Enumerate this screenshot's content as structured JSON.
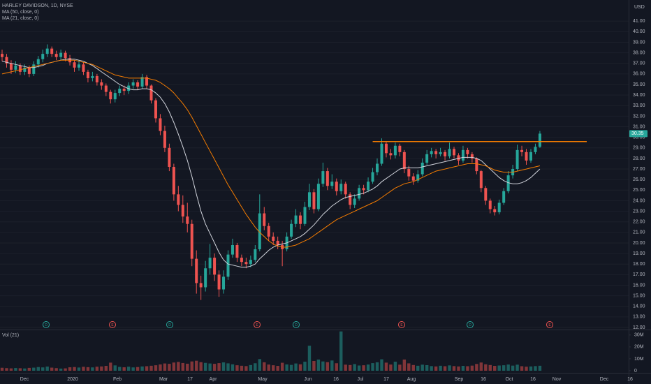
{
  "chart_data": {
    "type": "candlestick",
    "title": "HARLEY DAVIDSON, 1D, NYSE",
    "currency": "USD",
    "indicators": [
      "MA (50, close, 0)",
      "MA (21, close, 0)"
    ],
    "volume_title": "Vol (21)",
    "up_color": "#26a69a",
    "down_color": "#ef5350",
    "x_labels": [
      "Dec",
      "2020",
      "Feb",
      "Mar",
      "17",
      "Apr",
      "May",
      "Jun",
      "16",
      "Jul",
      "17",
      "Aug",
      "Sep",
      "16",
      "Oct",
      "16",
      "Nov",
      "Dec",
      "16"
    ],
    "events": [
      "D",
      "E",
      "D",
      "E",
      "D",
      "E",
      "D",
      "E"
    ],
    "ylim": [
      11.8,
      43
    ],
    "yticks": [
      {
        "value": 12,
        "label": "12.00"
      },
      {
        "value": 13,
        "label": "13.00"
      },
      {
        "value": 14,
        "label": "14.00"
      },
      {
        "value": 15,
        "label": "15.00"
      },
      {
        "value": 16,
        "label": "16.00"
      },
      {
        "value": 17,
        "label": "17.00"
      },
      {
        "value": 18,
        "label": "18.00"
      },
      {
        "value": 19,
        "label": "19.00"
      },
      {
        "value": 20,
        "label": "20.00"
      },
      {
        "value": 21,
        "label": "21.00"
      },
      {
        "value": 22,
        "label": "22.00"
      },
      {
        "value": 23,
        "label": "23.00"
      },
      {
        "value": 24,
        "label": "24.00"
      },
      {
        "value": 25,
        "label": "25.00"
      },
      {
        "value": 26,
        "label": "26.00"
      },
      {
        "value": 27,
        "label": "27.00"
      },
      {
        "value": 28,
        "label": "28.00"
      },
      {
        "value": 29,
        "label": "29.00"
      },
      {
        "value": 30,
        "label": "30.00"
      },
      {
        "value": 31,
        "label": "31.00"
      },
      {
        "value": 32,
        "label": "32.00"
      },
      {
        "value": 33,
        "label": "33.00"
      },
      {
        "value": 34,
        "label": "34.00"
      },
      {
        "value": 35,
        "label": "35.00"
      },
      {
        "value": 36,
        "label": "36.00"
      },
      {
        "value": 37,
        "label": "37.00"
      },
      {
        "value": 38,
        "label": "38.00"
      },
      {
        "value": 39,
        "label": "39.00"
      },
      {
        "value": 40,
        "label": "40.00"
      },
      {
        "value": 41,
        "label": "41.00"
      }
    ],
    "open": [
      37.9,
      37.6,
      37.0,
      36.4,
      36.8,
      36.2,
      36.6,
      36.0,
      36.9,
      37.4,
      37.9,
      38.4,
      37.9,
      37.6,
      38.0,
      37.5,
      37.1,
      36.6,
      36.9,
      36.2,
      35.6,
      35.8,
      35.2,
      34.9,
      34.3,
      33.6,
      34.2,
      34.6,
      34.4,
      34.9,
      35.2,
      34.8,
      35.7,
      34.9,
      33.5,
      31.8,
      30.6,
      29.0,
      27.2,
      24.6,
      23.6,
      22.5,
      21.8,
      18.5,
      16.2,
      15.8,
      17.6,
      18.6,
      17.0,
      15.6,
      16.8,
      18.9,
      19.8,
      18.6,
      18.2,
      18.0,
      18.4,
      19.4,
      22.8,
      21.6,
      20.6,
      20.2,
      19.8,
      19.4,
      20.6,
      21.8,
      22.6,
      21.8,
      23.4,
      24.8,
      23.2,
      25.6,
      26.8,
      25.4,
      25.8,
      24.9,
      25.6,
      24.6,
      23.6,
      24.2,
      25.2,
      25.0,
      25.8,
      26.7,
      27.5,
      29.4,
      28.5,
      28.3,
      29.2,
      28.6,
      27.0,
      26.3,
      25.9,
      26.5,
      27.6,
      28.4,
      28.7,
      28.4,
      28.6,
      28.2,
      28.9,
      28.3,
      27.8,
      28.8,
      28.4,
      28.0,
      26.8,
      25.2,
      24.0,
      23.2,
      22.9,
      23.8,
      24.9,
      26.4,
      27.0,
      28.8,
      28.6,
      27.8,
      28.6,
      29.1
    ],
    "high": [
      38.3,
      37.9,
      37.3,
      37.2,
      37.0,
      36.9,
      36.8,
      37.2,
      37.7,
      38.3,
      38.8,
      38.6,
      38.2,
      38.3,
      38.2,
      37.8,
      37.3,
      37.3,
      37.1,
      36.4,
      36.2,
      36.0,
      35.5,
      35.1,
      34.5,
      34.5,
      34.9,
      34.9,
      35.2,
      35.5,
      35.4,
      36.0,
      35.9,
      35.0,
      33.7,
      32.2,
      31.1,
      29.4,
      27.5,
      25.4,
      24.5,
      23.8,
      22.2,
      19.3,
      16.9,
      18.3,
      19.9,
      19.0,
      17.4,
      17.4,
      19.3,
      20.4,
      20.0,
      18.9,
      18.6,
      18.8,
      19.8,
      24.6,
      23.4,
      21.9,
      21.0,
      20.6,
      20.2,
      21.0,
      22.2,
      23.2,
      22.9,
      23.9,
      25.6,
      25.1,
      26.1,
      27.6,
      27.1,
      26.5,
      26.1,
      26.0,
      25.8,
      24.8,
      24.6,
      25.5,
      25.5,
      26.2,
      27.1,
      28.0,
      29.9,
      29.6,
      28.9,
      29.5,
      29.4,
      28.8,
      27.3,
      26.6,
      26.9,
      28.0,
      28.8,
      29.0,
      28.9,
      29.0,
      28.8,
      29.5,
      29.1,
      28.5,
      29.2,
      29.0,
      28.6,
      28.1,
      26.9,
      25.4,
      24.2,
      23.5,
      24.1,
      25.2,
      26.8,
      27.4,
      29.3,
      29.2,
      28.9,
      28.9,
      29.4,
      30.6
    ],
    "low": [
      37.2,
      36.6,
      36.0,
      36.1,
      35.9,
      35.9,
      35.7,
      35.8,
      36.6,
      37.1,
      37.6,
      37.6,
      37.3,
      37.3,
      37.2,
      36.8,
      36.2,
      36.3,
      35.9,
      35.2,
      35.3,
      34.9,
      34.5,
      33.9,
      33.2,
      33.3,
      33.9,
      34.0,
      34.1,
      34.6,
      34.5,
      34.6,
      34.6,
      33.2,
      31.4,
      30.2,
      28.6,
      26.8,
      24.0,
      23.0,
      21.9,
      21.0,
      17.8,
      15.2,
      14.6,
      15.4,
      17.0,
      16.4,
      14.9,
      15.2,
      16.5,
      18.6,
      18.2,
      17.8,
      17.6,
      17.7,
      18.2,
      19.2,
      21.2,
      20.2,
      19.8,
      19.4,
      17.8,
      19.2,
      20.4,
      21.5,
      21.3,
      21.6,
      23.1,
      22.8,
      23.0,
      25.3,
      25.0,
      25.1,
      24.5,
      24.6,
      24.2,
      23.2,
      23.3,
      24.0,
      24.6,
      24.8,
      25.6,
      26.4,
      27.3,
      28.1,
      27.9,
      28.0,
      28.2,
      26.6,
      25.9,
      25.5,
      25.7,
      26.3,
      27.4,
      28.1,
      28.0,
      28.2,
      27.8,
      28.0,
      28.0,
      27.4,
      27.6,
      28.0,
      27.6,
      26.5,
      24.8,
      23.6,
      22.8,
      22.6,
      22.7,
      23.6,
      24.7,
      26.1,
      26.8,
      28.2,
      27.4,
      27.6,
      28.4,
      29.0
    ],
    "close": [
      37.6,
      37.0,
      36.4,
      36.8,
      36.2,
      36.6,
      36.0,
      36.9,
      37.4,
      37.9,
      38.4,
      37.9,
      37.6,
      38.0,
      37.5,
      37.1,
      36.6,
      36.9,
      36.2,
      35.6,
      35.8,
      35.2,
      34.9,
      34.3,
      33.6,
      34.2,
      34.6,
      34.4,
      34.9,
      35.2,
      34.8,
      35.7,
      34.9,
      33.5,
      31.8,
      30.6,
      29.0,
      27.2,
      24.6,
      23.6,
      22.5,
      21.8,
      18.5,
      16.2,
      15.8,
      17.6,
      18.6,
      17.0,
      15.6,
      16.8,
      18.9,
      19.8,
      18.6,
      18.2,
      18.0,
      18.4,
      19.4,
      22.8,
      21.6,
      20.6,
      20.2,
      19.8,
      19.4,
      20.6,
      21.8,
      22.6,
      21.8,
      23.4,
      24.8,
      23.2,
      25.6,
      26.8,
      25.4,
      25.8,
      24.9,
      25.6,
      24.6,
      23.6,
      24.2,
      25.2,
      25.0,
      25.8,
      26.7,
      27.5,
      29.4,
      28.5,
      28.3,
      29.2,
      28.6,
      27.0,
      26.3,
      25.9,
      26.5,
      27.6,
      28.4,
      28.7,
      28.4,
      28.6,
      28.2,
      28.9,
      28.3,
      27.8,
      28.8,
      28.4,
      28.0,
      26.8,
      25.2,
      24.0,
      23.2,
      22.9,
      23.8,
      24.9,
      26.4,
      27.0,
      28.8,
      28.6,
      27.8,
      28.6,
      29.1,
      30.35
    ],
    "last_price_label": "30.35",
    "ma": [
      {
        "name": "MA (21, close, 0)",
        "color": "#d1d4dc",
        "values": [
          37.2,
          37.1,
          37.0,
          36.9,
          36.8,
          36.7,
          36.6,
          36.6,
          36.7,
          36.8,
          37.0,
          37.1,
          37.2,
          37.3,
          37.4,
          37.4,
          37.4,
          37.3,
          37.2,
          37.0,
          36.8,
          36.5,
          36.2,
          35.9,
          35.6,
          35.3,
          35.0,
          34.8,
          34.6,
          34.5,
          34.5,
          34.6,
          34.6,
          34.5,
          34.2,
          33.8,
          33.2,
          32.4,
          31.4,
          30.3,
          29.1,
          27.8,
          26.3,
          24.6,
          23.0,
          21.8,
          20.9,
          20.0,
          19.1,
          18.4,
          18.0,
          17.9,
          17.8,
          17.7,
          17.7,
          17.8,
          18.0,
          18.5,
          18.9,
          19.3,
          19.6,
          19.8,
          19.9,
          20.0,
          20.2,
          20.4,
          20.6,
          20.9,
          21.3,
          21.7,
          22.2,
          22.7,
          23.1,
          23.5,
          23.8,
          24.1,
          24.3,
          24.4,
          24.5,
          24.6,
          24.7,
          24.9,
          25.1,
          25.4,
          25.8,
          26.1,
          26.4,
          26.7,
          27.0,
          27.1,
          27.1,
          27.1,
          27.1,
          27.2,
          27.3,
          27.4,
          27.5,
          27.6,
          27.7,
          27.8,
          27.9,
          28.0,
          28.1,
          28.1,
          28.1,
          28.0,
          27.8,
          27.4,
          27.0,
          26.6,
          26.2,
          25.9,
          25.7,
          25.6,
          25.6,
          25.7,
          25.9,
          26.2,
          26.6,
          27.0
        ]
      },
      {
        "name": "MA (50, close, 0)",
        "color": "#f57c00",
        "values": [
          36.0,
          36.1,
          36.2,
          36.3,
          36.4,
          36.5,
          36.6,
          36.7,
          36.8,
          36.9,
          37.0,
          37.1,
          37.2,
          37.3,
          37.3,
          37.3,
          37.3,
          37.2,
          37.1,
          37.0,
          36.9,
          36.7,
          36.5,
          36.3,
          36.1,
          35.9,
          35.8,
          35.7,
          35.6,
          35.6,
          35.6,
          35.6,
          35.6,
          35.5,
          35.4,
          35.2,
          34.9,
          34.6,
          34.2,
          33.7,
          33.2,
          32.6,
          31.9,
          31.1,
          30.3,
          29.5,
          28.7,
          27.9,
          27.1,
          26.3,
          25.5,
          24.8,
          24.1,
          23.4,
          22.7,
          22.1,
          21.5,
          21.0,
          20.6,
          20.2,
          19.9,
          19.7,
          19.6,
          19.6,
          19.7,
          19.8,
          20.0,
          20.2,
          20.4,
          20.7,
          21.0,
          21.3,
          21.6,
          21.9,
          22.2,
          22.4,
          22.6,
          22.8,
          23.0,
          23.2,
          23.4,
          23.6,
          23.8,
          24.0,
          24.3,
          24.6,
          24.9,
          25.2,
          25.4,
          25.6,
          25.7,
          25.8,
          26.0,
          26.2,
          26.4,
          26.6,
          26.8,
          26.9,
          27.0,
          27.1,
          27.2,
          27.3,
          27.4,
          27.5,
          27.5,
          27.5,
          27.4,
          27.3,
          27.1,
          26.9,
          26.8,
          26.7,
          26.7,
          26.7,
          26.8,
          26.9,
          27.0,
          27.1,
          27.2,
          27.3
        ]
      }
    ],
    "resistance": {
      "value": 29.6,
      "color": "#f57c00"
    },
    "volume": [
      2500000,
      2200000,
      2000000,
      2300000,
      2100000,
      1900000,
      2400000,
      2600000,
      3100000,
      2800000,
      3500000,
      2600000,
      2200000,
      1800000,
      2000000,
      2900000,
      3100000,
      2700000,
      3300000,
      3000000,
      2800000,
      3400000,
      3600000,
      4100000,
      6800000,
      4500000,
      3200000,
      2900000,
      3400000,
      2800000,
      3100000,
      3600000,
      3800000,
      4200000,
      4600000,
      5300000,
      6100000,
      5800000,
      6900000,
      7400000,
      6500000,
      5900000,
      7800000,
      8400000,
      7200000,
      6600000,
      6100000,
      5800000,
      6400000,
      7000000,
      6200000,
      5400000,
      4600000,
      4200000,
      3900000,
      4800000,
      6300000,
      9800000,
      7100000,
      5200000,
      4600000,
      4100000,
      6700000,
      5300000,
      4900000,
      6100000,
      5400000,
      7600000,
      21000000,
      8200000,
      9400000,
      7800000,
      7200000,
      8600000,
      6300000,
      33000000,
      5100000,
      4800000,
      5600000,
      4400000,
      4600000,
      5200000,
      6400000,
      7100000,
      9600000,
      6800000,
      5200000,
      7600000,
      5100000,
      9400000,
      6200000,
      4800000,
      4200000,
      5100000,
      4700000,
      3900000,
      3600000,
      4200000,
      3800000,
      4500000,
      3900000,
      3600000,
      4100000,
      3800000,
      4300000,
      5700000,
      6900000,
      5400000,
      4800000,
      4100000,
      4400000,
      4600000,
      5200000,
      4300000,
      5100000,
      3800000,
      3400000,
      3600000,
      3900000,
      4200000
    ],
    "vlim": [
      0,
      34000000
    ],
    "vticks": [
      0,
      {
        "value": 10000000,
        "label": "10M"
      },
      {
        "value": 20000000,
        "label": "20M"
      },
      {
        "value": 30000000,
        "label": "30M"
      }
    ]
  }
}
